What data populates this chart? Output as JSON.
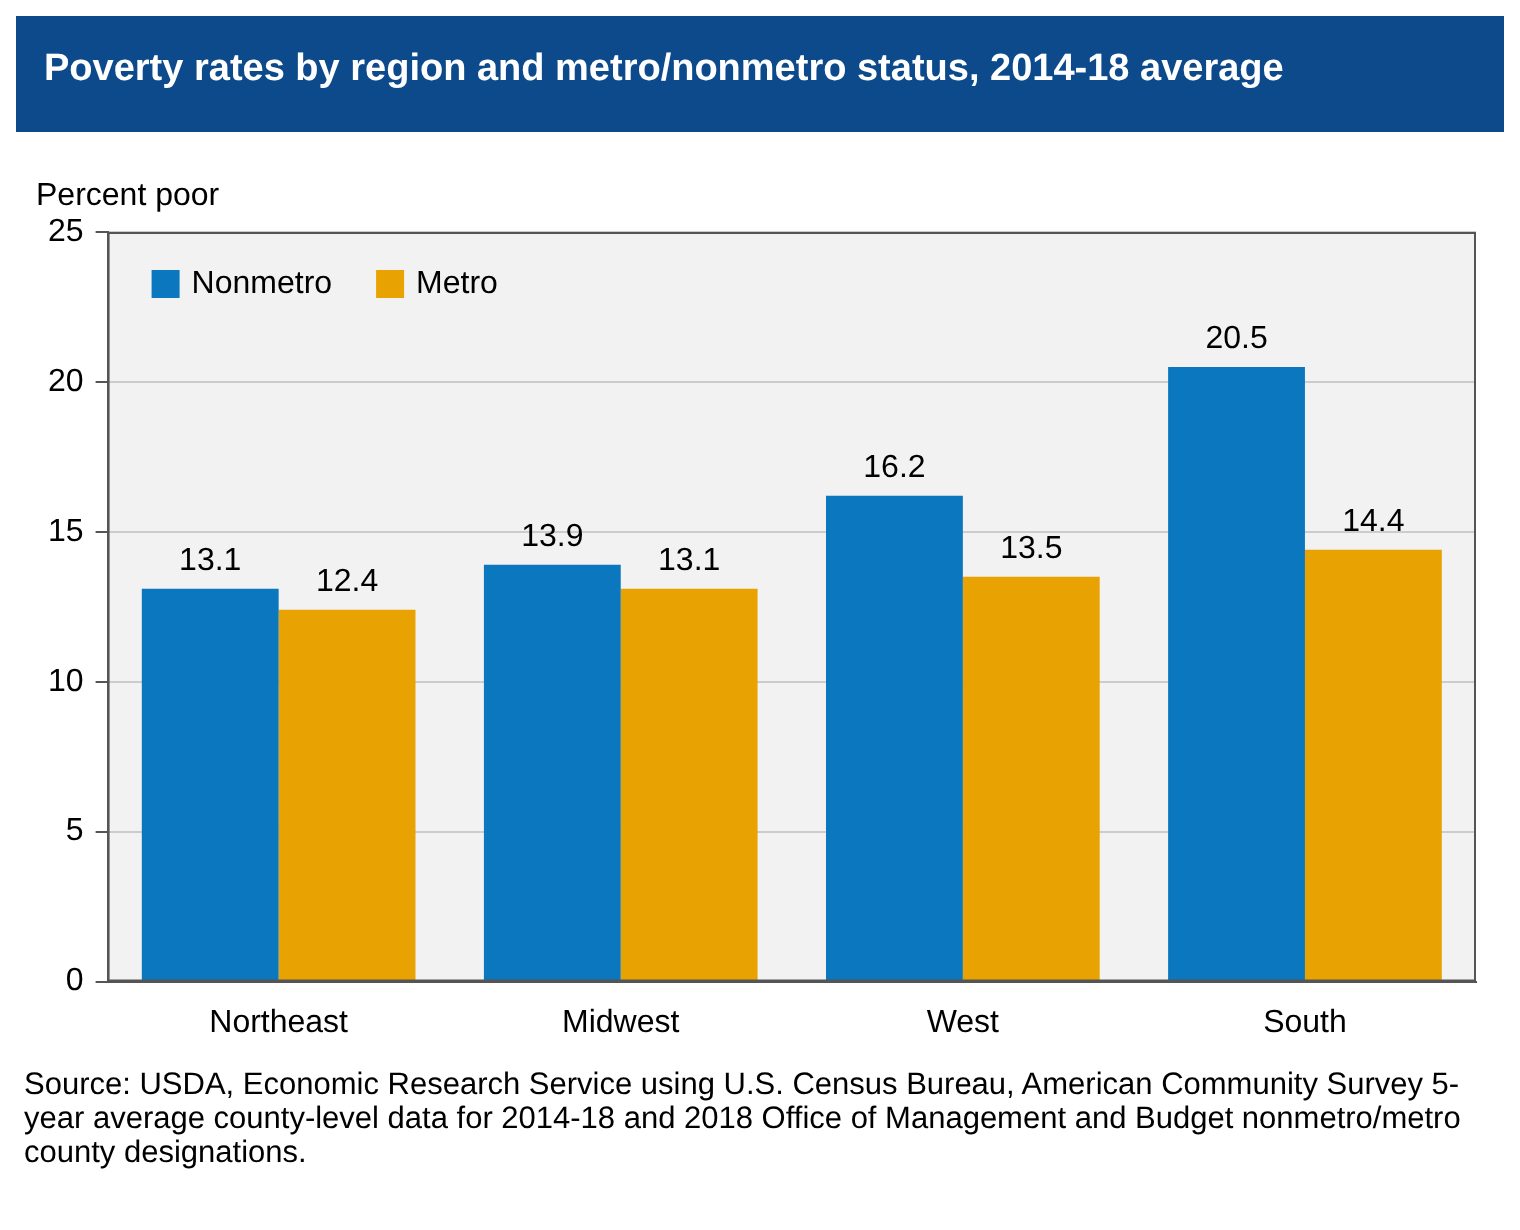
{
  "chart_data": {
    "type": "bar",
    "title": "Poverty rates by region and metro/nonmetro status, 2014-18 average",
    "ylabel": "Percent poor",
    "categories": [
      "Northeast",
      "Midwest",
      "West",
      "South"
    ],
    "series": [
      {
        "name": "Nonmetro",
        "color": "#0a77bf",
        "values": [
          13.1,
          13.9,
          16.2,
          20.5
        ]
      },
      {
        "name": "Metro",
        "color": "#e8a202",
        "values": [
          12.4,
          13.1,
          13.5,
          14.4
        ]
      }
    ],
    "ylim": [
      0,
      25
    ],
    "yticks": [
      0,
      5,
      10,
      15,
      20,
      25
    ],
    "grid": "y",
    "legend": "top left",
    "data_labels": true,
    "annotations": [
      "Source: USDA, Economic Research Service using U.S. Census Bureau, American Community Survey 5-year average county-level data for 2014-18 and 2018 Office of Management and Budget nonmetro/metro county designations."
    ]
  }
}
